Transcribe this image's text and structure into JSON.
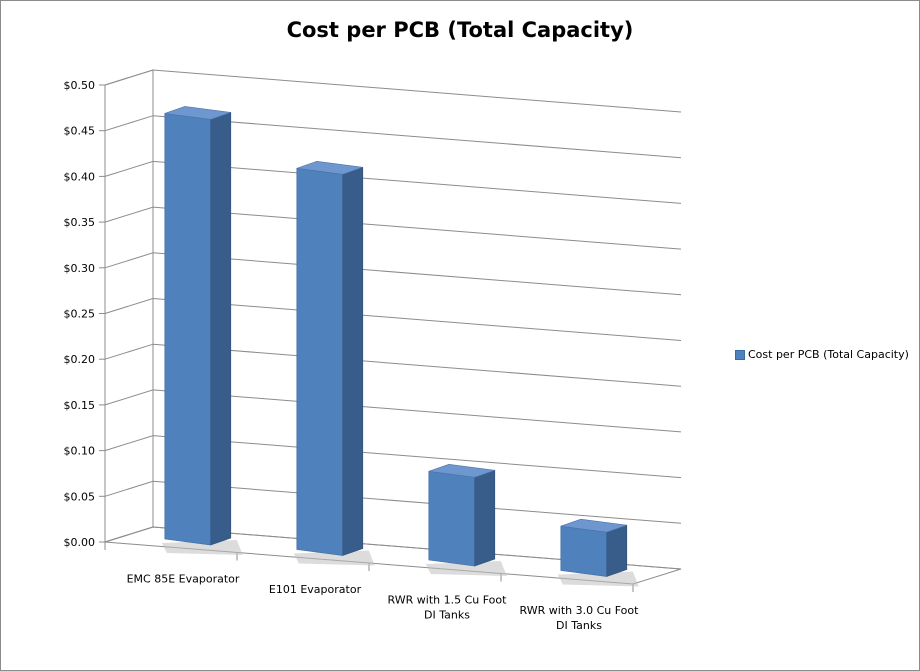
{
  "chart_data": {
    "type": "bar",
    "title": "Cost per PCB (Total Capacity)",
    "categories": [
      [
        "EMC 85E Evaporator"
      ],
      [
        "E101 Evaporator"
      ],
      [
        "RWR with 1.5 Cu Foot",
        "DI Tanks"
      ],
      [
        "RWR with 3.0 Cu Foot",
        "DI Tanks"
      ]
    ],
    "series": [
      {
        "name": "Cost per PCB (Total Capacity)",
        "values": [
          0.48,
          0.43,
          0.1,
          0.05
        ]
      }
    ],
    "yticks": [
      "$0.00",
      "$0.05",
      "$0.10",
      "$0.15",
      "$0.20",
      "$0.25",
      "$0.30",
      "$0.35",
      "$0.40",
      "$0.45",
      "$0.50"
    ],
    "ylim": [
      0,
      0.5
    ],
    "grid": true,
    "legend_position": "right",
    "three_d": true,
    "colors": {
      "bar_front": "#4f81bd",
      "bar_side": "#385d8a",
      "bar_top": "#6f97cf",
      "grid": "#8c8c8c"
    }
  }
}
